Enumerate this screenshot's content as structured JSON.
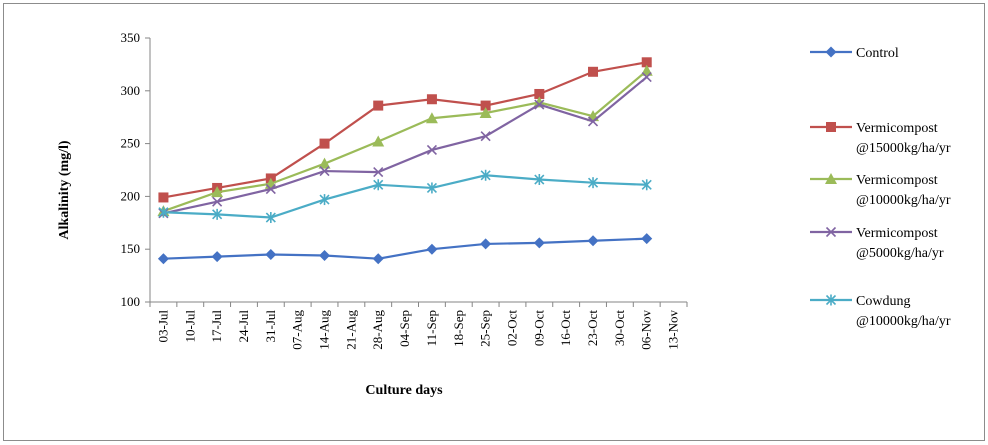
{
  "chart_data": {
    "type": "line",
    "title": "",
    "xlabel": "Culture days",
    "ylabel": "Alkalinity (mg/l)",
    "ylim": [
      100,
      350
    ],
    "yticks": [
      100,
      150,
      200,
      250,
      300,
      350
    ],
    "grid": false,
    "legend_position": "right",
    "x": [
      "2021-07-03",
      "2021-07-17",
      "2021-07-31",
      "2021-08-14",
      "2021-08-28",
      "2021-09-11",
      "2021-09-25",
      "2021-10-09",
      "2021-10-23",
      "2021-11-06"
    ],
    "x_tick_labels": [
      "03-Jul",
      "10-Jul",
      "17-Jul",
      "24-Jul",
      "31-Jul",
      "07-Aug",
      "14-Aug",
      "21-Aug",
      "28-Aug",
      "04-Sep",
      "11-Sep",
      "18-Sep",
      "25-Sep",
      "02-Oct",
      "09-Oct",
      "16-Oct",
      "23-Oct",
      "30-Oct",
      "06-Nov",
      "13-Nov"
    ],
    "series": [
      {
        "name": "Control",
        "color": "#4472C4",
        "marker": "diamond",
        "values": [
          141,
          143,
          145,
          144,
          141,
          150,
          155,
          156,
          158,
          160
        ]
      },
      {
        "name": "Vermicompost @15000kg/ha/yr",
        "color": "#C0504D",
        "marker": "square",
        "values": [
          199,
          208,
          217,
          250,
          286,
          292,
          286,
          297,
          318,
          327
        ]
      },
      {
        "name": "Vermicompost @10000kg/ha/yr",
        "color": "#9BBB59",
        "marker": "triangle",
        "values": [
          186,
          204,
          212,
          231,
          252,
          274,
          279,
          289,
          276,
          319
        ]
      },
      {
        "name": "Vermicompost @5000kg/ha/yr",
        "color": "#8064A2",
        "marker": "x",
        "values": [
          184,
          195,
          207,
          224,
          223,
          244,
          257,
          287,
          271,
          313
        ]
      },
      {
        "name": "Cowdung @10000kg/ha/yr",
        "color": "#4BACC6",
        "marker": "asterisk",
        "values": [
          185,
          183,
          180,
          197,
          211,
          208,
          220,
          216,
          213,
          211
        ]
      }
    ],
    "legend": [
      {
        "line1": "Control",
        "line2": ""
      },
      {
        "line1": "Vermicompost",
        "line2": "@15000kg/ha/yr"
      },
      {
        "line1": "Vermicompost",
        "line2": "@10000kg/ha/yr"
      },
      {
        "line1": "Vermicompost",
        "line2": "@5000kg/ha/yr"
      },
      {
        "line1": "Cowdung",
        "line2": "@10000kg/ha/yr"
      }
    ]
  }
}
